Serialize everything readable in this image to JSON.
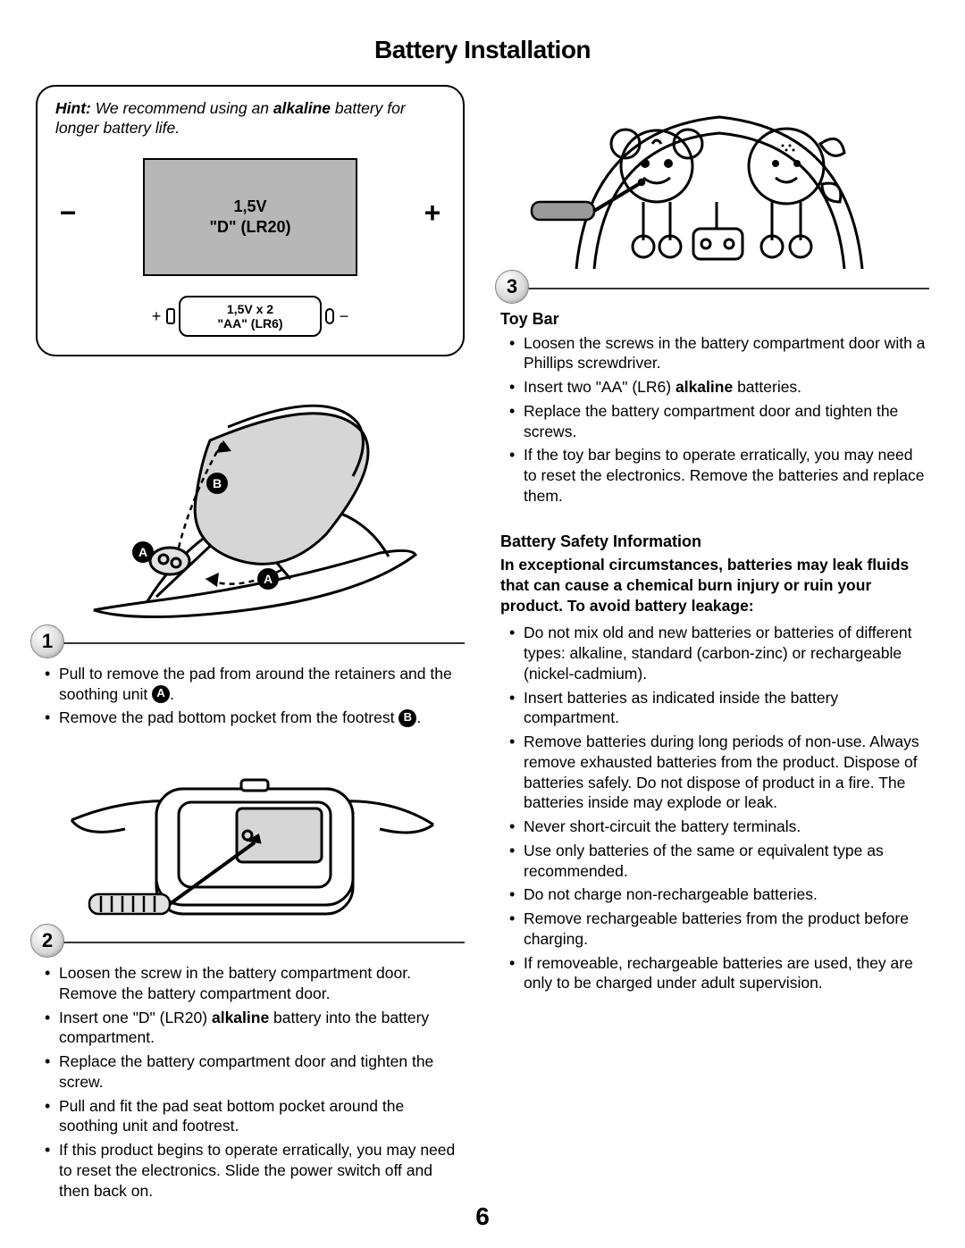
{
  "page_title": "Battery Installation",
  "page_number": "6",
  "hint": {
    "prefix": "Hint:",
    "body_before": " We recommend using an ",
    "bold": "alkaline",
    "body_after": " battery for longer battery life."
  },
  "battery_d": {
    "line1": "1,5V",
    "line2": "\"D\" (LR20)",
    "minus": "−",
    "plus": "+",
    "bg_color": "#b7b7b7"
  },
  "battery_aa": {
    "line1": "1,5V x 2",
    "line2": "\"AA\" (LR6)",
    "plus": "+",
    "minus": "−"
  },
  "step1": {
    "number": "1",
    "items": [
      {
        "pre": "Pull to remove the pad from around the retainers and the soothing unit ",
        "badge": "A",
        "post": "."
      },
      {
        "pre": "Remove the pad bottom pocket from the footrest ",
        "badge": "B",
        "post": "."
      }
    ],
    "callout_a": "A",
    "callout_b": "B"
  },
  "step2": {
    "number": "2",
    "items": [
      "Loosen the screw in the battery compartment door. Remove the battery compartment door.",
      "Insert one \"D\" (LR20) <b>alkaline</b> battery into the battery compartment.",
      "Replace the battery compartment door and tighten the screw.",
      "Pull and fit the pad seat bottom pocket around the soothing unit and footrest.",
      "If this product begins to operate erratically, you may need to reset the electronics. Slide the power switch off and then back on."
    ]
  },
  "step3": {
    "number": "3",
    "heading": "Toy Bar",
    "items": [
      "Loosen the screws in the battery compartment door with a Phillips screwdriver.",
      "Insert two \"AA\" (LR6) <b>alkaline</b> batteries.",
      "Replace the battery compartment door and tighten the screws.",
      "If the toy bar begins to operate erratically, you may need to reset the electronics. Remove the batteries and replace them."
    ]
  },
  "safety": {
    "heading": "Battery Safety Information",
    "intro": "In exceptional circumstances, batteries may leak fluids that can cause a chemical burn injury or ruin your product. To avoid battery leakage:",
    "items": [
      "Do not mix old and new batteries or batteries of different types: alkaline, standard (carbon-zinc) or rechargeable (nickel-cadmium).",
      "Insert batteries as indicated inside the battery compartment.",
      "Remove batteries during long periods of non-use. Always remove exhausted batteries from the product. Dispose of batteries safely. Do not dispose of product in a fire. The batteries inside may explode or leak.",
      "Never short-circuit the battery terminals.",
      "Use only batteries of the same or equivalent type as recommended.",
      "Do not charge non-rechargeable batteries.",
      "Remove rechargeable batteries from the product before charging.",
      "If removeable, rechargeable batteries are used, they are only to be charged under adult supervision."
    ]
  },
  "colors": {
    "text": "#000000",
    "battery_fill": "#b7b7b7",
    "figure_fill_light": "#e2e2e2",
    "figure_fill_mid": "#d6d6d6"
  }
}
